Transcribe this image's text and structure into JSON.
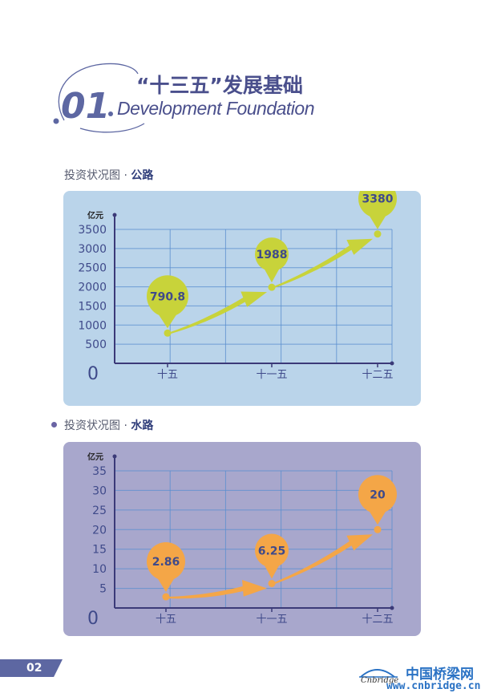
{
  "header": {
    "number": "01",
    "title_cn": "“十三五”发展基础",
    "title_en": "Development Foundation"
  },
  "page_number": "02",
  "watermark": {
    "cn": "中国桥梁网",
    "url": "www.cnbridge.cn",
    "en": "Cnbridge"
  },
  "colors": {
    "road_panel": "#bad4ea",
    "water_panel": "#a8a7cc",
    "road_bubble": "#c8d33a",
    "water_bubble": "#f4a647",
    "axis": "#3b3a78",
    "grid": "#5b8fcf"
  },
  "chart_data": [
    {
      "type": "line",
      "label_prefix": "投资状况图 · ",
      "label_bold": "公路",
      "unit_label": "亿元",
      "categories": [
        "十五",
        "十一五",
        "十二五"
      ],
      "values": [
        790.8,
        1988,
        3380
      ],
      "value_labels": [
        "790.8",
        "1988",
        "3380"
      ],
      "yticks": [
        500,
        1000,
        1500,
        2000,
        2500,
        3000,
        3500
      ],
      "origin_label": "0",
      "ylim": [
        0,
        3500
      ],
      "grid": true
    },
    {
      "type": "line",
      "label_prefix": "投资状况图 · ",
      "label_bold": "水路",
      "unit_label": "亿元",
      "categories": [
        "十五",
        "十一五",
        "十二五"
      ],
      "values": [
        2.86,
        6.25,
        20
      ],
      "value_labels": [
        "2.86",
        "6.25",
        "20"
      ],
      "yticks": [
        5,
        10,
        15,
        20,
        25,
        30,
        35
      ],
      "origin_label": "0",
      "ylim": [
        0,
        35
      ],
      "grid": true
    }
  ]
}
